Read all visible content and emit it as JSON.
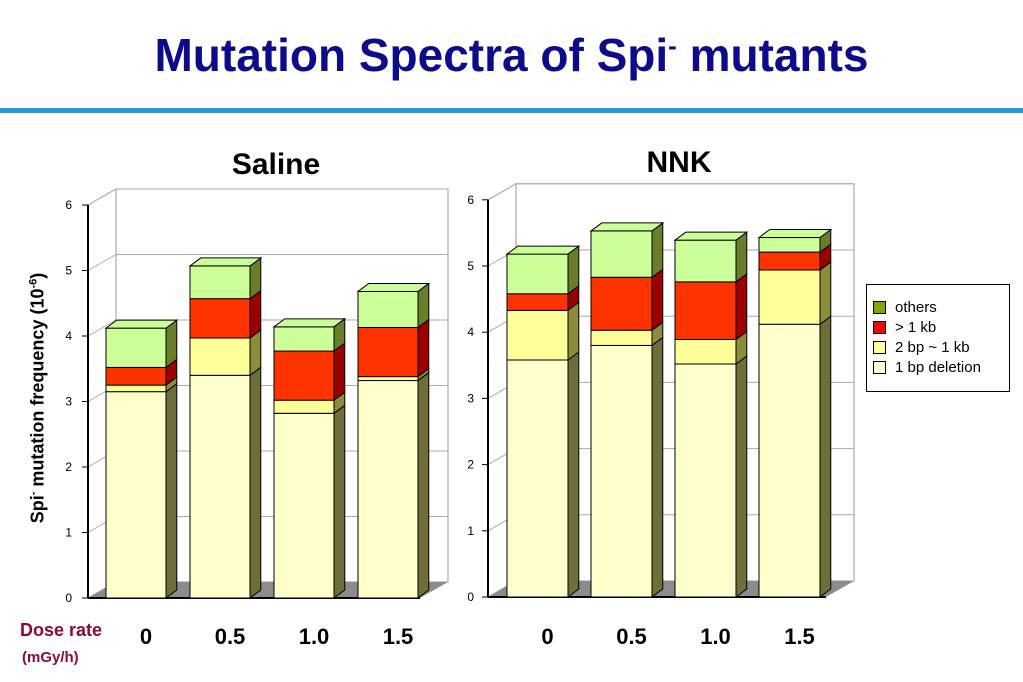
{
  "slide": {
    "title": "Mutation Spectra of Spi",
    "title_sup": "-",
    "title_end": " mutants"
  },
  "axis": {
    "ylabel_pre": "Spi",
    "ylabel_sup": "-",
    "ylabel_mid": " mutation frequency (10",
    "ylabel_exp": "-6",
    "ylabel_end": ")",
    "dose_label": "Dose rate",
    "dose_unit": "(mGy/h)"
  },
  "legend": [
    {
      "label": "others",
      "color": "#7fa800"
    },
    {
      "label": "> 1 kb",
      "color": "#ff0000"
    },
    {
      "label": "2 bp ~ 1 kb",
      "color": "#ffff99"
    },
    {
      "label": "1 bp deletion",
      "color": "#ffffcc"
    }
  ],
  "chart_data": [
    {
      "type": "bar",
      "stacked": true,
      "three_d": true,
      "title": "Saline",
      "categories": [
        "0",
        "0.5",
        "1.0",
        "1.5"
      ],
      "yticks": [
        "0",
        "1",
        "2",
        "3",
        "4",
        "5",
        "6"
      ],
      "ylim": [
        0,
        6
      ],
      "grid": true,
      "series": [
        {
          "name": "1 bp deletion",
          "color": "#ffffcc",
          "values": [
            3.15,
            3.4,
            2.82,
            3.32
          ]
        },
        {
          "name": "2 bp ~ 1 kb",
          "color": "#ffff99",
          "values": [
            0.1,
            0.57,
            0.2,
            0.06
          ]
        },
        {
          "name": "> 1 kb",
          "color": "#ff3300",
          "values": [
            0.27,
            0.6,
            0.75,
            0.75
          ]
        },
        {
          "name": "others",
          "color": "#ccff99",
          "values": [
            0.6,
            0.5,
            0.37,
            0.55
          ]
        }
      ]
    },
    {
      "type": "bar",
      "stacked": true,
      "three_d": true,
      "title": "NNK",
      "categories": [
        "0",
        "0.5",
        "1.0",
        "1.5"
      ],
      "yticks": [
        "0",
        "1",
        "2",
        "3",
        "4",
        "5",
        "6"
      ],
      "ylim": [
        0,
        6
      ],
      "grid": true,
      "series": [
        {
          "name": "1 bp deletion",
          "color": "#ffffcc",
          "values": [
            3.58,
            3.8,
            3.52,
            4.12
          ]
        },
        {
          "name": "2 bp ~ 1 kb",
          "color": "#ffff99",
          "values": [
            0.75,
            0.23,
            0.37,
            0.82
          ]
        },
        {
          "name": "> 1 kb",
          "color": "#ff3300",
          "values": [
            0.25,
            0.8,
            0.87,
            0.27
          ]
        },
        {
          "name": "others",
          "color": "#ccff99",
          "values": [
            0.6,
            0.7,
            0.63,
            0.22
          ]
        }
      ]
    }
  ]
}
